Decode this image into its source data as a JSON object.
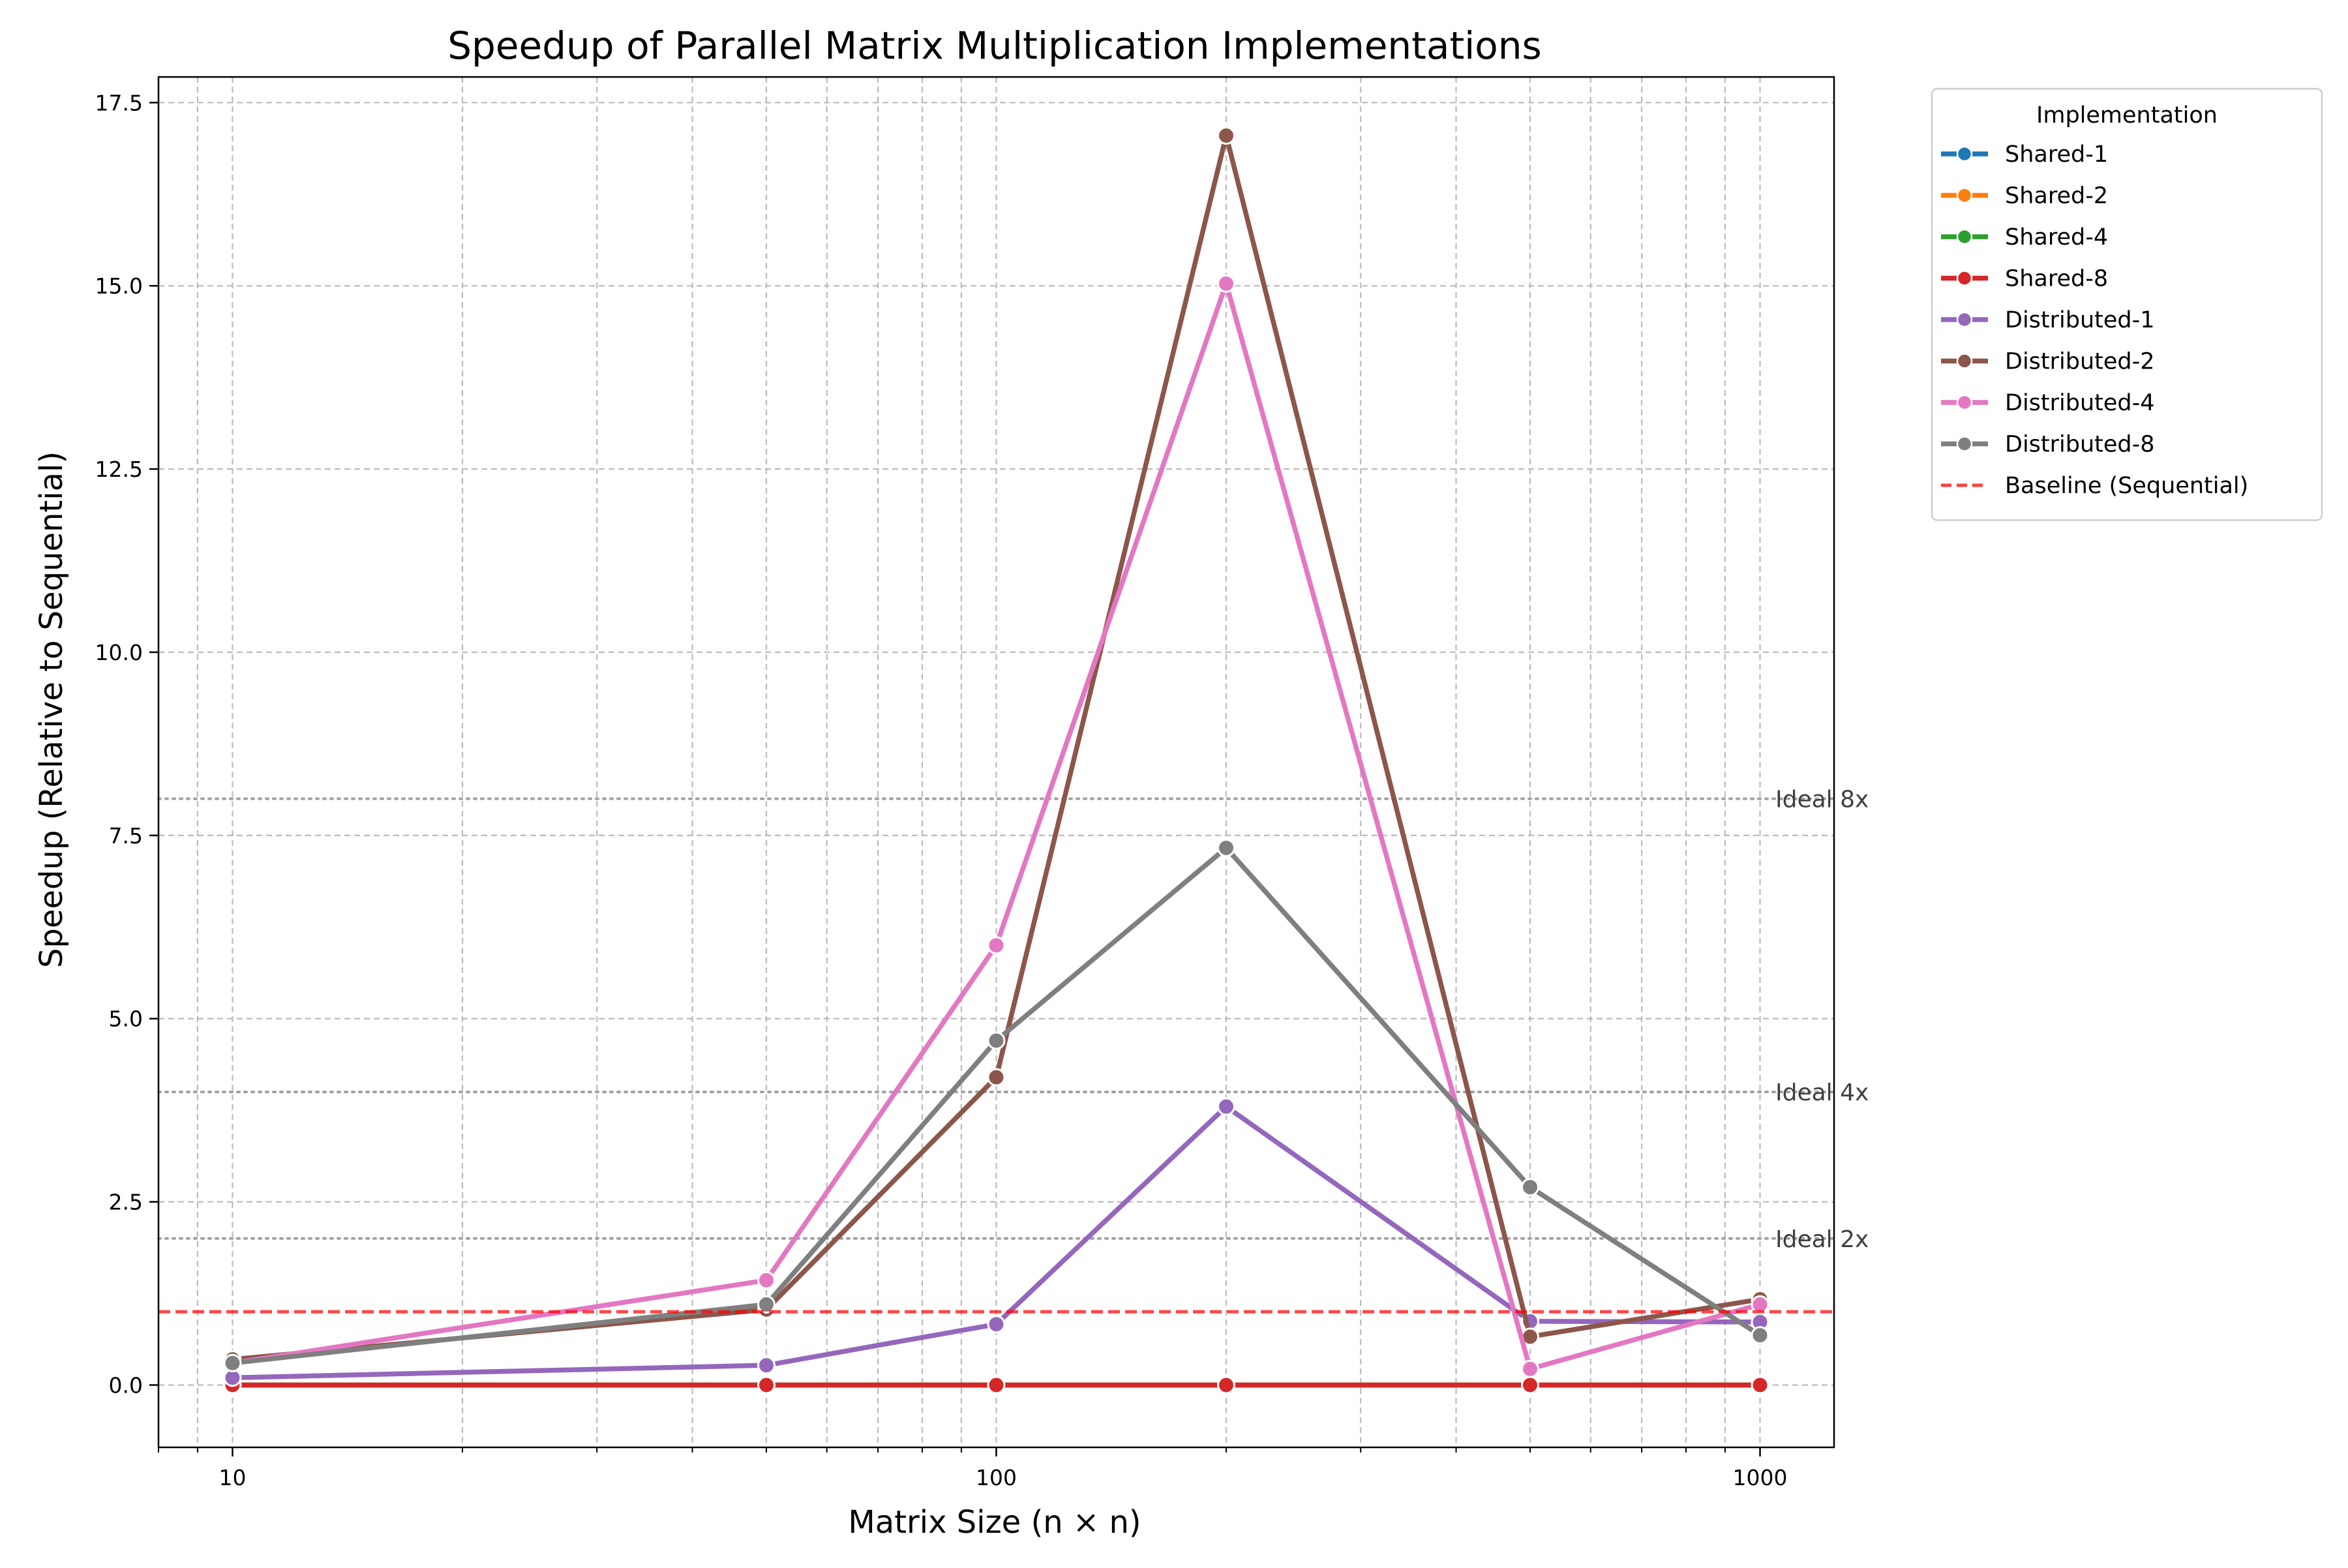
{
  "chart_data": {
    "type": "line",
    "title": "Speedup of Parallel Matrix Multiplication Implementations",
    "xlabel": "Matrix Size (n × n)",
    "ylabel": "Speedup (Relative to Sequential)",
    "x_scale": "log",
    "xlim": [
      8,
      1250
    ],
    "ylim": [
      -0.85,
      17.85
    ],
    "x_ticks": [
      10,
      100,
      1000
    ],
    "x_tick_labels": [
      "10",
      "100",
      "1000"
    ],
    "y_ticks": [
      0,
      2.5,
      5,
      7.5,
      10,
      12.5,
      15,
      17.5
    ],
    "y_tick_labels": [
      "0.0",
      "2.5",
      "5.0",
      "7.5",
      "10.0",
      "12.5",
      "15.0",
      "17.5"
    ],
    "grid": true,
    "legend_title": "Implementation",
    "legend_position": "outside-top-right",
    "x": [
      10,
      50,
      100,
      200,
      500,
      1000
    ],
    "series": [
      {
        "name": "Shared-1",
        "color": "#1f77b4",
        "values": [
          0.0,
          0.0,
          0.0,
          0.0,
          0.0,
          0.0
        ]
      },
      {
        "name": "Shared-2",
        "color": "#ff7f0e",
        "values": [
          0.0,
          0.0,
          0.0,
          0.0,
          0.0,
          0.0
        ]
      },
      {
        "name": "Shared-4",
        "color": "#2ca02c",
        "values": [
          0.0,
          0.0,
          0.0,
          0.0,
          0.0,
          0.0
        ]
      },
      {
        "name": "Shared-8",
        "color": "#d62728",
        "values": [
          0.0,
          0.0,
          0.0,
          0.0,
          0.0,
          0.0
        ]
      },
      {
        "name": "Distributed-1",
        "color": "#9467bd",
        "values": [
          0.1,
          0.27,
          0.83,
          3.8,
          0.87,
          0.86
        ]
      },
      {
        "name": "Distributed-2",
        "color": "#8c564b",
        "values": [
          0.35,
          1.03,
          4.2,
          17.05,
          0.66,
          1.17
        ]
      },
      {
        "name": "Distributed-4",
        "color": "#e377c2",
        "values": [
          0.3,
          1.43,
          6.0,
          15.03,
          0.22,
          1.1
        ]
      },
      {
        "name": "Distributed-8",
        "color": "#7f7f7f",
        "values": [
          0.3,
          1.1,
          4.7,
          7.33,
          2.7,
          0.68
        ]
      }
    ],
    "baseline": {
      "name": "Baseline (Sequential)",
      "value": 1.0,
      "color": "#ff0000"
    },
    "reference_lines": [
      {
        "label": "Ideal 8x",
        "value": 8
      },
      {
        "label": "Ideal 4x",
        "value": 4
      },
      {
        "label": "Ideal 2x",
        "value": 2
      }
    ]
  }
}
